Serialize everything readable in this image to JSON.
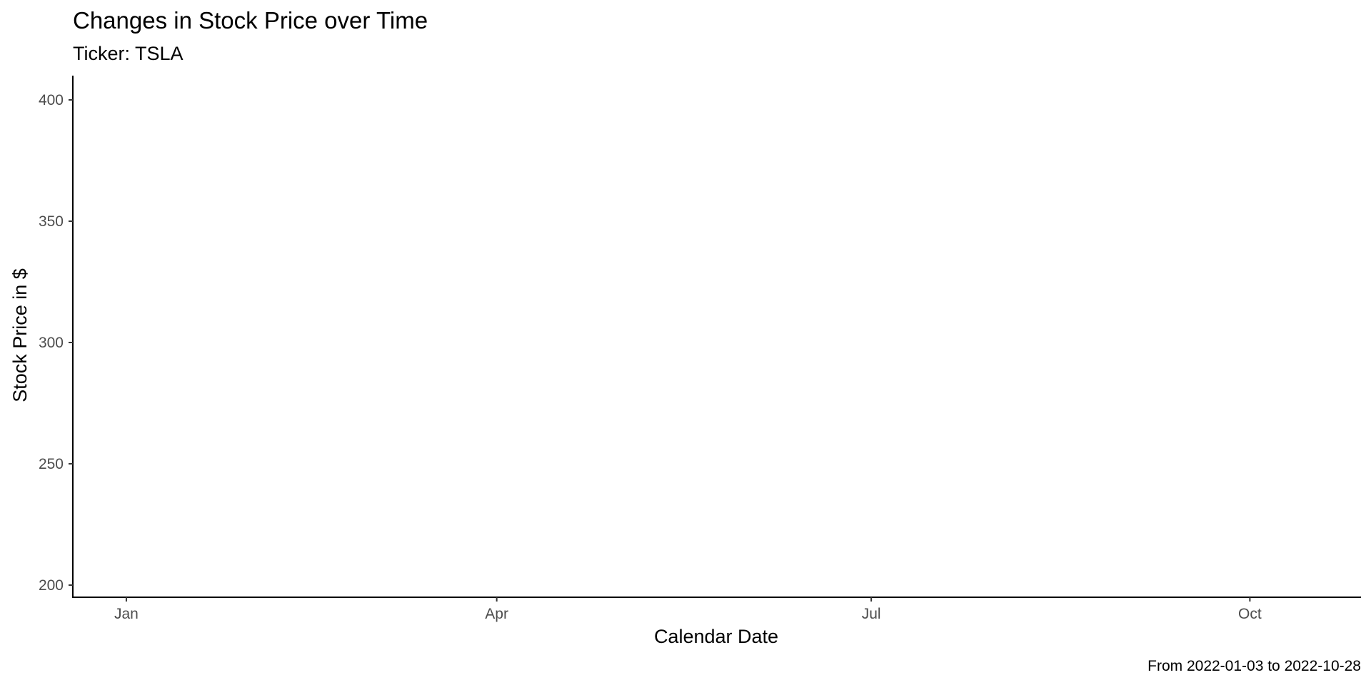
{
  "chart_data": {
    "type": "line",
    "title": "Changes in Stock Price over Time",
    "subtitle": "Ticker: TSLA",
    "xlabel": "Calendar Date",
    "ylabel": "Stock Price in $",
    "caption": "From 2022-01-03 to 2022-10-28",
    "xlim": [
      "2021-12-19",
      "2022-10-28"
    ],
    "x_ticks": [
      {
        "date": "2022-01-01",
        "label": "Jan"
      },
      {
        "date": "2022-04-01",
        "label": "Apr"
      },
      {
        "date": "2022-07-01",
        "label": "Jul"
      },
      {
        "date": "2022-10-01",
        "label": "Oct"
      }
    ],
    "ylim": [
      195,
      410
    ],
    "y_ticks": [
      200,
      250,
      300,
      350,
      400
    ],
    "grid": false,
    "series": []
  }
}
